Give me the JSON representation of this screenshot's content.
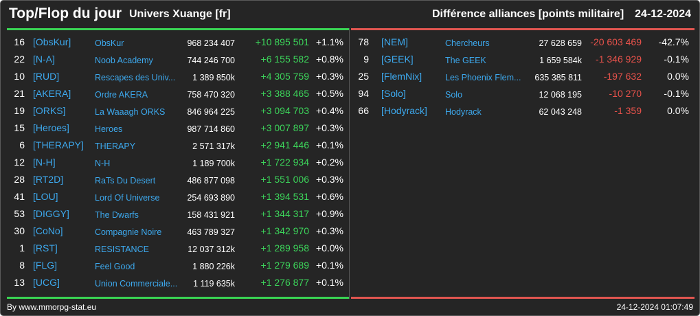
{
  "header": {
    "title": "Top/Flop du jour",
    "universe": "Univers Xuange [fr]",
    "category": "Différence alliances [points militaire]",
    "date": "24-12-2024"
  },
  "colors": {
    "positive": "#3cd45a",
    "negative": "#e8524b",
    "tag": "#3da9ee",
    "background": "#252525"
  },
  "top": [
    {
      "rank": "16",
      "tag": "[ObsKur]",
      "name": "ObsKur",
      "points": "968 234 407",
      "delta": "+10 895 501",
      "pct": "+1.1%"
    },
    {
      "rank": "22",
      "tag": "[N-A]",
      "name": "Noob Academy",
      "points": "744 246 700",
      "delta": "+6 155 582",
      "pct": "+0.8%"
    },
    {
      "rank": "10",
      "tag": "[RUD]",
      "name": "Rescapes des Univ...",
      "points": "1 389 850k",
      "delta": "+4 305 759",
      "pct": "+0.3%"
    },
    {
      "rank": "21",
      "tag": "[AKERA]",
      "name": "Ordre AKERA",
      "points": "758 470 320",
      "delta": "+3 388 465",
      "pct": "+0.5%"
    },
    {
      "rank": "19",
      "tag": "[ORKS]",
      "name": "La Waaagh ORKS",
      "points": "846 964 225",
      "delta": "+3 094 703",
      "pct": "+0.4%"
    },
    {
      "rank": "15",
      "tag": "[Heroes]",
      "name": "Heroes",
      "points": "987 714 860",
      "delta": "+3 007 897",
      "pct": "+0.3%"
    },
    {
      "rank": "6",
      "tag": "[THERAPY]",
      "name": "THERAPY",
      "points": "2 571 317k",
      "delta": "+2 941 446",
      "pct": "+0.1%"
    },
    {
      "rank": "12",
      "tag": "[N-H]",
      "name": "N-H",
      "points": "1 189 700k",
      "delta": "+1 722 934",
      "pct": "+0.2%"
    },
    {
      "rank": "28",
      "tag": "[RT2D]",
      "name": "RaTs Du Desert",
      "points": "486 877 098",
      "delta": "+1 551 006",
      "pct": "+0.3%"
    },
    {
      "rank": "41",
      "tag": "[LOU]",
      "name": "Lord Of Universe",
      "points": "254 693 890",
      "delta": "+1 394 531",
      "pct": "+0.6%"
    },
    {
      "rank": "53",
      "tag": "[DIGGY]",
      "name": "The Dwarfs",
      "points": "158 431 921",
      "delta": "+1 344 317",
      "pct": "+0.9%"
    },
    {
      "rank": "30",
      "tag": "[CoNo]",
      "name": "Compagnie Noire",
      "points": "463 789 327",
      "delta": "+1 342 970",
      "pct": "+0.3%"
    },
    {
      "rank": "1",
      "tag": "[RST]",
      "name": "RESISTANCE",
      "points": "12 037 312k",
      "delta": "+1 289 958",
      "pct": "+0.0%"
    },
    {
      "rank": "8",
      "tag": "[FLG]",
      "name": "Feel Good",
      "points": "1 880 226k",
      "delta": "+1 279 689",
      "pct": "+0.1%"
    },
    {
      "rank": "13",
      "tag": "[UCG]",
      "name": "Union Commerciale...",
      "points": "1 119 635k",
      "delta": "+1 276 877",
      "pct": "+0.1%"
    }
  ],
  "flop": [
    {
      "rank": "78",
      "tag": "[NEM]",
      "name": "Chercheurs",
      "points": "27 628 659",
      "delta": "-20 603 469",
      "pct": "-42.7%"
    },
    {
      "rank": "9",
      "tag": "[GEEK]",
      "name": "The GEEK",
      "points": "1 659 584k",
      "delta": "-1 346 929",
      "pct": "-0.1%"
    },
    {
      "rank": "25",
      "tag": "[FlemNix]",
      "name": "Les Phoenix Flem...",
      "points": "635 385 811",
      "delta": "-197 632",
      "pct": "0.0%"
    },
    {
      "rank": "94",
      "tag": "[Solo]",
      "name": "Solo",
      "points": "12 068 195",
      "delta": "-10 270",
      "pct": "-0.1%"
    },
    {
      "rank": "66",
      "tag": "[Hodyrack]",
      "name": "Hodyrack",
      "points": "62 043 248",
      "delta": "-1 359",
      "pct": "0.0%"
    }
  ],
  "footer": {
    "credit": "By www.mmorpg-stat.eu",
    "timestamp": "24-12-2024 01:07:49"
  }
}
